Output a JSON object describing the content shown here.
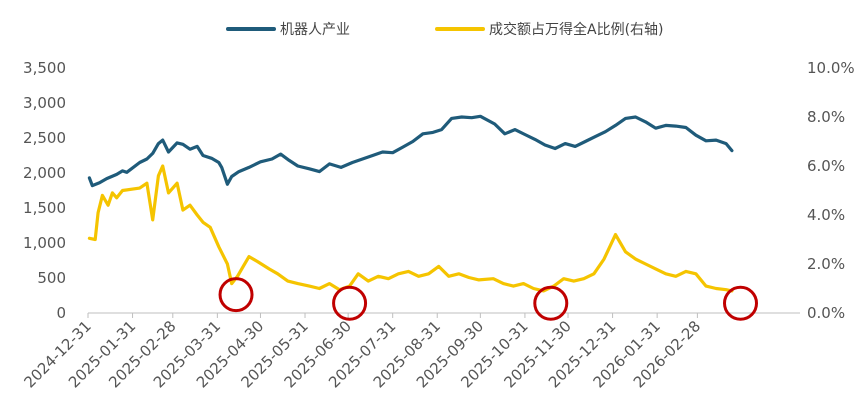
{
  "chart_data": {
    "type": "line",
    "title": "",
    "xlabel": "",
    "ylabel": "",
    "legend": {
      "position": "top",
      "entries": [
        "机器人产业",
        "成交额占万得全A比例(右轴)"
      ]
    },
    "grid": false,
    "x_ticks": [
      "2024-12-31",
      "2025-01-31",
      "2025-02-28",
      "2025-03-31",
      "2025-04-30",
      "2025-05-31",
      "2025-06-30",
      "2025-07-31",
      "2025-08-31",
      "2025-09-30",
      "2025-10-31",
      "2025-11-30",
      "2025-12-31",
      "2026-01-31",
      "2026-02-28"
    ],
    "y_left": {
      "range": [
        0,
        3500
      ],
      "ticks": [
        0,
        500,
        1000,
        1500,
        2000,
        2500,
        3000,
        3500
      ],
      "tick_labels": [
        "0",
        "500",
        "1,000",
        "1,500",
        "2,000",
        "2,500",
        "3,000",
        "3,500"
      ]
    },
    "y_right": {
      "range": [
        0,
        10
      ],
      "ticks": [
        0,
        2,
        4,
        6,
        8,
        10
      ],
      "tick_labels": [
        "0.0%",
        "2.0%",
        "4.0%",
        "6.0%",
        "8.0%",
        "10.0%"
      ]
    },
    "series": [
      {
        "name": "机器人产业",
        "axis": "left",
        "color": "#1f5b7a",
        "points": [
          [
            "2025-01-01",
            1930
          ],
          [
            "2025-01-03",
            1820
          ],
          [
            "2025-01-08",
            1860
          ],
          [
            "2025-01-13",
            1920
          ],
          [
            "2025-01-20",
            1980
          ],
          [
            "2025-01-24",
            2030
          ],
          [
            "2025-01-27",
            2010
          ],
          [
            "2025-02-05",
            2150
          ],
          [
            "2025-02-10",
            2200
          ],
          [
            "2025-02-14",
            2280
          ],
          [
            "2025-02-18",
            2420
          ],
          [
            "2025-02-21",
            2470
          ],
          [
            "2025-02-25",
            2300
          ],
          [
            "2025-03-03",
            2430
          ],
          [
            "2025-03-07",
            2410
          ],
          [
            "2025-03-12",
            2340
          ],
          [
            "2025-03-17",
            2380
          ],
          [
            "2025-03-21",
            2250
          ],
          [
            "2025-03-27",
            2210
          ],
          [
            "2025-04-01",
            2150
          ],
          [
            "2025-04-03",
            2080
          ],
          [
            "2025-04-07",
            1840
          ],
          [
            "2025-04-10",
            1950
          ],
          [
            "2025-04-15",
            2020
          ],
          [
            "2025-04-22",
            2080
          ],
          [
            "2025-04-30",
            2160
          ],
          [
            "2025-05-08",
            2200
          ],
          [
            "2025-05-14",
            2270
          ],
          [
            "2025-05-20",
            2180
          ],
          [
            "2025-05-26",
            2100
          ],
          [
            "2025-06-03",
            2060
          ],
          [
            "2025-06-10",
            2020
          ],
          [
            "2025-06-17",
            2130
          ],
          [
            "2025-06-25",
            2080
          ],
          [
            "2025-07-03",
            2150
          ],
          [
            "2025-07-10",
            2200
          ],
          [
            "2025-07-17",
            2250
          ],
          [
            "2025-07-24",
            2300
          ],
          [
            "2025-07-31",
            2290
          ],
          [
            "2025-08-07",
            2370
          ],
          [
            "2025-08-14",
            2450
          ],
          [
            "2025-08-21",
            2560
          ],
          [
            "2025-08-28",
            2580
          ],
          [
            "2025-09-03",
            2620
          ],
          [
            "2025-09-10",
            2780
          ],
          [
            "2025-09-17",
            2800
          ],
          [
            "2025-09-24",
            2790
          ],
          [
            "2025-09-30",
            2810
          ],
          [
            "2025-10-10",
            2700
          ],
          [
            "2025-10-17",
            2560
          ],
          [
            "2025-10-24",
            2620
          ],
          [
            "2025-10-31",
            2550
          ],
          [
            "2025-11-07",
            2480
          ],
          [
            "2025-11-14",
            2400
          ],
          [
            "2025-11-21",
            2350
          ],
          [
            "2025-11-28",
            2420
          ],
          [
            "2025-12-05",
            2380
          ],
          [
            "2025-12-12",
            2450
          ],
          [
            "2025-12-19",
            2520
          ],
          [
            "2025-12-26",
            2590
          ],
          [
            "2026-01-02",
            2680
          ],
          [
            "2026-01-09",
            2780
          ],
          [
            "2026-01-16",
            2800
          ],
          [
            "2026-01-23",
            2730
          ],
          [
            "2026-01-30",
            2640
          ],
          [
            "2026-02-06",
            2680
          ],
          [
            "2026-02-13",
            2670
          ],
          [
            "2026-02-20",
            2650
          ],
          [
            "2026-02-27",
            2540
          ],
          [
            "2026-03-06",
            2460
          ],
          [
            "2026-03-13",
            2470
          ],
          [
            "2026-03-20",
            2420
          ],
          [
            "2026-03-24",
            2320
          ]
        ]
      },
      {
        "name": "成交额占万得全A比例(右轴)",
        "axis": "right",
        "color": "#f5c400",
        "points": [
          [
            "2025-01-01",
            3.05
          ],
          [
            "2025-01-05",
            3.0
          ],
          [
            "2025-01-07",
            4.1
          ],
          [
            "2025-01-10",
            4.8
          ],
          [
            "2025-01-14",
            4.4
          ],
          [
            "2025-01-17",
            4.9
          ],
          [
            "2025-01-20",
            4.7
          ],
          [
            "2025-01-24",
            5.0
          ],
          [
            "2025-02-05",
            5.1
          ],
          [
            "2025-02-10",
            5.3
          ],
          [
            "2025-02-14",
            3.8
          ],
          [
            "2025-02-18",
            5.6
          ],
          [
            "2025-02-21",
            6.0
          ],
          [
            "2025-02-25",
            4.9
          ],
          [
            "2025-03-03",
            5.3
          ],
          [
            "2025-03-07",
            4.2
          ],
          [
            "2025-03-12",
            4.4
          ],
          [
            "2025-03-17",
            4.0
          ],
          [
            "2025-03-21",
            3.7
          ],
          [
            "2025-03-26",
            3.5
          ],
          [
            "2025-04-01",
            2.7
          ],
          [
            "2025-04-07",
            2.0
          ],
          [
            "2025-04-10",
            1.2
          ],
          [
            "2025-04-14",
            1.5
          ],
          [
            "2025-04-18",
            1.9
          ],
          [
            "2025-04-22",
            2.3
          ],
          [
            "2025-04-28",
            2.1
          ],
          [
            "2025-05-06",
            1.8
          ],
          [
            "2025-05-12",
            1.6
          ],
          [
            "2025-05-19",
            1.3
          ],
          [
            "2025-05-26",
            1.2
          ],
          [
            "2025-06-03",
            1.1
          ],
          [
            "2025-06-10",
            1.0
          ],
          [
            "2025-06-17",
            1.2
          ],
          [
            "2025-06-24",
            0.95
          ],
          [
            "2025-07-01",
            1.1
          ],
          [
            "2025-07-07",
            1.6
          ],
          [
            "2025-07-14",
            1.3
          ],
          [
            "2025-07-21",
            1.5
          ],
          [
            "2025-07-28",
            1.4
          ],
          [
            "2025-08-04",
            1.6
          ],
          [
            "2025-08-11",
            1.7
          ],
          [
            "2025-08-18",
            1.5
          ],
          [
            "2025-08-25",
            1.6
          ],
          [
            "2025-09-01",
            1.9
          ],
          [
            "2025-09-08",
            1.5
          ],
          [
            "2025-09-15",
            1.6
          ],
          [
            "2025-09-22",
            1.45
          ],
          [
            "2025-09-29",
            1.35
          ],
          [
            "2025-10-09",
            1.4
          ],
          [
            "2025-10-16",
            1.2
          ],
          [
            "2025-10-23",
            1.1
          ],
          [
            "2025-10-30",
            1.2
          ],
          [
            "2025-11-06",
            1.0
          ],
          [
            "2025-11-13",
            0.9
          ],
          [
            "2025-11-20",
            1.1
          ],
          [
            "2025-11-27",
            1.4
          ],
          [
            "2025-12-04",
            1.3
          ],
          [
            "2025-12-11",
            1.4
          ],
          [
            "2025-12-18",
            1.6
          ],
          [
            "2025-12-25",
            2.2
          ],
          [
            "2026-01-02",
            3.2
          ],
          [
            "2026-01-09",
            2.5
          ],
          [
            "2026-01-16",
            2.2
          ],
          [
            "2026-01-23",
            2.0
          ],
          [
            "2026-01-30",
            1.8
          ],
          [
            "2026-02-06",
            1.6
          ],
          [
            "2026-02-13",
            1.5
          ],
          [
            "2026-02-20",
            1.7
          ],
          [
            "2026-02-27",
            1.6
          ],
          [
            "2026-03-06",
            1.1
          ],
          [
            "2026-03-13",
            1.0
          ],
          [
            "2026-03-20",
            0.95
          ],
          [
            "2026-03-24",
            0.9
          ]
        ]
      }
    ],
    "annotations": [
      {
        "shape": "circle",
        "color": "#c00000",
        "x": "2025-04-13",
        "y_right": 0.75
      },
      {
        "shape": "circle",
        "color": "#c00000",
        "x": "2025-07-01",
        "y_right": 0.4
      },
      {
        "shape": "circle",
        "color": "#c00000",
        "x": "2025-11-18",
        "y_right": 0.4
      },
      {
        "shape": "circle",
        "color": "#c00000",
        "x": "2026-03-30",
        "y_right": 0.4
      }
    ]
  }
}
